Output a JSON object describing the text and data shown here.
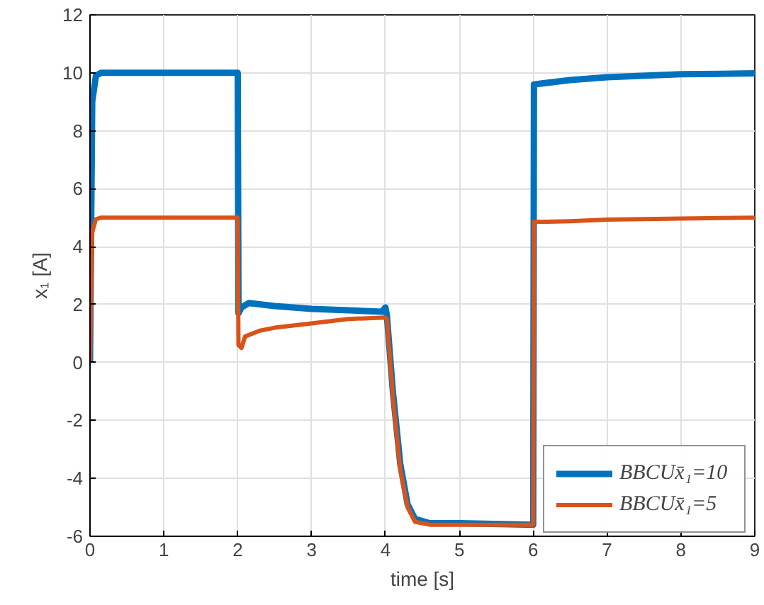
{
  "chart_data": {
    "type": "line",
    "xlabel": "time [s]",
    "ylabel": "x₁ [A]",
    "xlim": [
      0,
      9
    ],
    "xticks": [
      0,
      1,
      2,
      3,
      4,
      5,
      6,
      7,
      8,
      9
    ],
    "ylim": [
      -6,
      12
    ],
    "yticks": [
      -6,
      -4,
      -2,
      0,
      2,
      4,
      6,
      8,
      10,
      12
    ],
    "grid": true,
    "legend": "bottom right",
    "line_style": "solid",
    "series": [
      {
        "name": "BBCUx̄₁=10",
        "color": "#0072bd",
        "x": [
          0,
          0.03,
          0.08,
          0.15,
          2,
          2.01,
          2.05,
          2.15,
          2.5,
          3,
          3.5,
          3.95,
          4,
          4.02,
          4.1,
          4.2,
          4.3,
          4.4,
          4.6,
          5,
          6,
          6.01,
          6.5,
          7,
          8,
          9
        ],
        "values": [
          0,
          9,
          9.9,
          10,
          10,
          1.7,
          1.9,
          2.05,
          1.95,
          1.85,
          1.8,
          1.75,
          1.9,
          1.6,
          -1,
          -3.5,
          -4.9,
          -5.4,
          -5.55,
          -5.55,
          -5.6,
          9.6,
          9.75,
          9.85,
          9.95,
          9.98
        ]
      },
      {
        "name": "BBCUx̄₁=5",
        "color": "#d95319",
        "x": [
          0,
          0.03,
          0.08,
          0.15,
          2,
          2.01,
          2.05,
          2.1,
          2.3,
          2.5,
          3,
          3.5,
          4,
          4.02,
          4.1,
          4.2,
          4.3,
          4.4,
          4.6,
          6,
          6.01,
          6.5,
          7,
          8,
          9
        ],
        "values": [
          0,
          4.5,
          4.95,
          5,
          5,
          0.6,
          0.5,
          0.9,
          1.1,
          1.2,
          1.35,
          1.5,
          1.55,
          1.5,
          -1.2,
          -3.7,
          -5.0,
          -5.5,
          -5.6,
          -5.6,
          4.85,
          4.88,
          4.93,
          4.97,
          5
        ]
      }
    ]
  }
}
